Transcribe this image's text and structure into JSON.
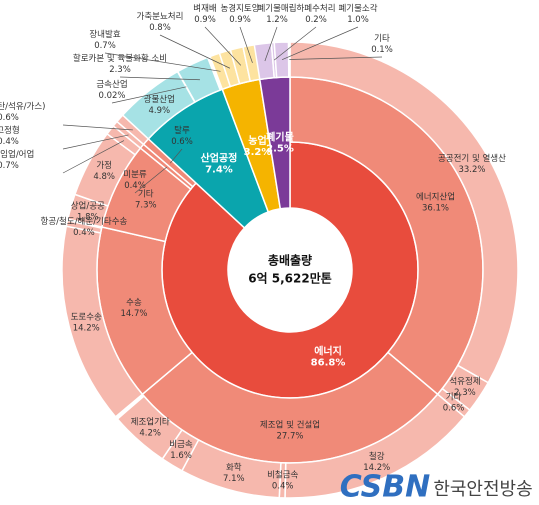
{
  "chart_data": {
    "type": "sunburst",
    "center_title": "총배출량",
    "center_label": "6억 5,622만톤",
    "nodes": [
      {
        "name": "에너지",
        "value": 86.8,
        "value_label": "86.8%",
        "color": "#e84c3d",
        "children": [
          {
            "name": "에너지산업",
            "value": 36.1,
            "value_label": "36.1%",
            "color": "#f08a78",
            "children": [
              {
                "name": "공공전기 및 열생산",
                "value": 33.2,
                "value_label": "33.2%",
                "color": "#f6b8ad"
              },
              {
                "name": "석유정제",
                "value": 2.3,
                "value_label": "2.3%",
                "color": "#f6b8ad"
              },
              {
                "name": "기타",
                "value": 0.6,
                "value_label": "0.6%",
                "color": "#f6b8ad"
              }
            ]
          },
          {
            "name": "제조업 및 건설업",
            "value": 27.7,
            "value_label": "27.7%",
            "color": "#f08a78",
            "children": [
              {
                "name": "철강",
                "value": 14.2,
                "value_label": "14.2%",
                "color": "#f6b8ad"
              },
              {
                "name": "비철금속",
                "value": 0.4,
                "value_label": "0.4%",
                "color": "#f6b8ad"
              },
              {
                "name": "화학",
                "value": 7.1,
                "value_label": "7.1%",
                "color": "#f6b8ad"
              },
              {
                "name": "비금속",
                "value": 1.6,
                "value_label": "1.6%",
                "color": "#f6b8ad"
              },
              {
                "name": "제조업기타",
                "value": 4.2,
                "value_label": "4.2%",
                "color": "#f6b8ad"
              }
            ]
          },
          {
            "name": "수송",
            "value": 14.7,
            "value_label": "14.7%",
            "color": "#f08a78",
            "children": [
              {
                "name": "도로수송",
                "value": 14.2,
                "value_label": "14.2%",
                "color": "#f6b8ad"
              },
              {
                "name": "항공/철도/해운/기타수송",
                "value": 0.4,
                "value_label": "0.4%",
                "color": "#f6b8ad"
              }
            ]
          },
          {
            "name": "기타",
            "value": 7.3,
            "value_label": "7.3%",
            "color": "#f08a78",
            "children": [
              {
                "name": "상업/공공",
                "value": 1.8,
                "value_label": "1.8%",
                "color": "#f6b8ad"
              },
              {
                "name": "가정",
                "value": 4.8,
                "value_label": "4.8%",
                "color": "#f6b8ad"
              },
              {
                "name": "농업/임업/어업",
                "value": 0.7,
                "value_label": "0.7%",
                "color": "#f6b8ad"
              }
            ]
          },
          {
            "name": "미분류",
            "value": 0.4,
            "value_label": "0.4%",
            "color": "#f08a78",
            "children": [
              {
                "name": "고정형",
                "value": 0.4,
                "value_label": "0.4%",
                "color": "#f6b8ad"
              }
            ]
          },
          {
            "name": "탈루",
            "value": 0.6,
            "value_label": "0.6%",
            "color": "#f08a78",
            "children": [
              {
                "name": "탈루(석탄/석유/가스)",
                "value": 0.6,
                "value_label": "0.6%",
                "color": "#f6b8ad"
              }
            ]
          }
        ]
      },
      {
        "name": "산업공정",
        "value": 7.4,
        "value_label": "7.4%",
        "color": "#0aa5ad",
        "children": [
          {
            "name": "광물산업",
            "value": 4.9,
            "value_label": "4.9%",
            "color": "#a6e2e5"
          },
          {
            "name": "금속산업",
            "value": 0.02,
            "value_label": "0.02%",
            "color": "#a6e2e5"
          },
          {
            "name": "할로카본 및 육불화황 소비",
            "value": 2.3,
            "value_label": "2.3%",
            "color": "#a6e2e5"
          }
        ]
      },
      {
        "name": "농업",
        "value": 3.2,
        "value_label": "3.2%",
        "color": "#f5b400",
        "children": [
          {
            "name": "장내발효",
            "value": 0.7,
            "value_label": "0.7%",
            "color": "#fde3a0"
          },
          {
            "name": "가축분뇨처리",
            "value": 0.8,
            "value_label": "0.8%",
            "color": "#fde3a0"
          },
          {
            "name": "벼재배",
            "value": 0.9,
            "value_label": "0.9%",
            "color": "#fde3a0"
          },
          {
            "name": "농경지토양",
            "value": 0.9,
            "value_label": "0.9%",
            "color": "#fde3a0"
          }
        ]
      },
      {
        "name": "폐기물",
        "value": 2.5,
        "value_label": "2.5%",
        "color": "#7b3a98",
        "children": [
          {
            "name": "폐기물매립",
            "value": 1.2,
            "value_label": "1.2%",
            "color": "#dcc6e8"
          },
          {
            "name": "하폐수처리",
            "value": 0.2,
            "value_label": "0.2%",
            "color": "#dcc6e8"
          },
          {
            "name": "폐기물소각",
            "value": 1.0,
            "value_label": "1.0%",
            "color": "#dcc6e8"
          },
          {
            "name": "기타",
            "value": 0.1,
            "value_label": "0.1%",
            "color": "#dcc6e8"
          }
        ]
      }
    ]
  },
  "logo": {
    "mark": "CSBN",
    "text": "한국안전방송"
  }
}
